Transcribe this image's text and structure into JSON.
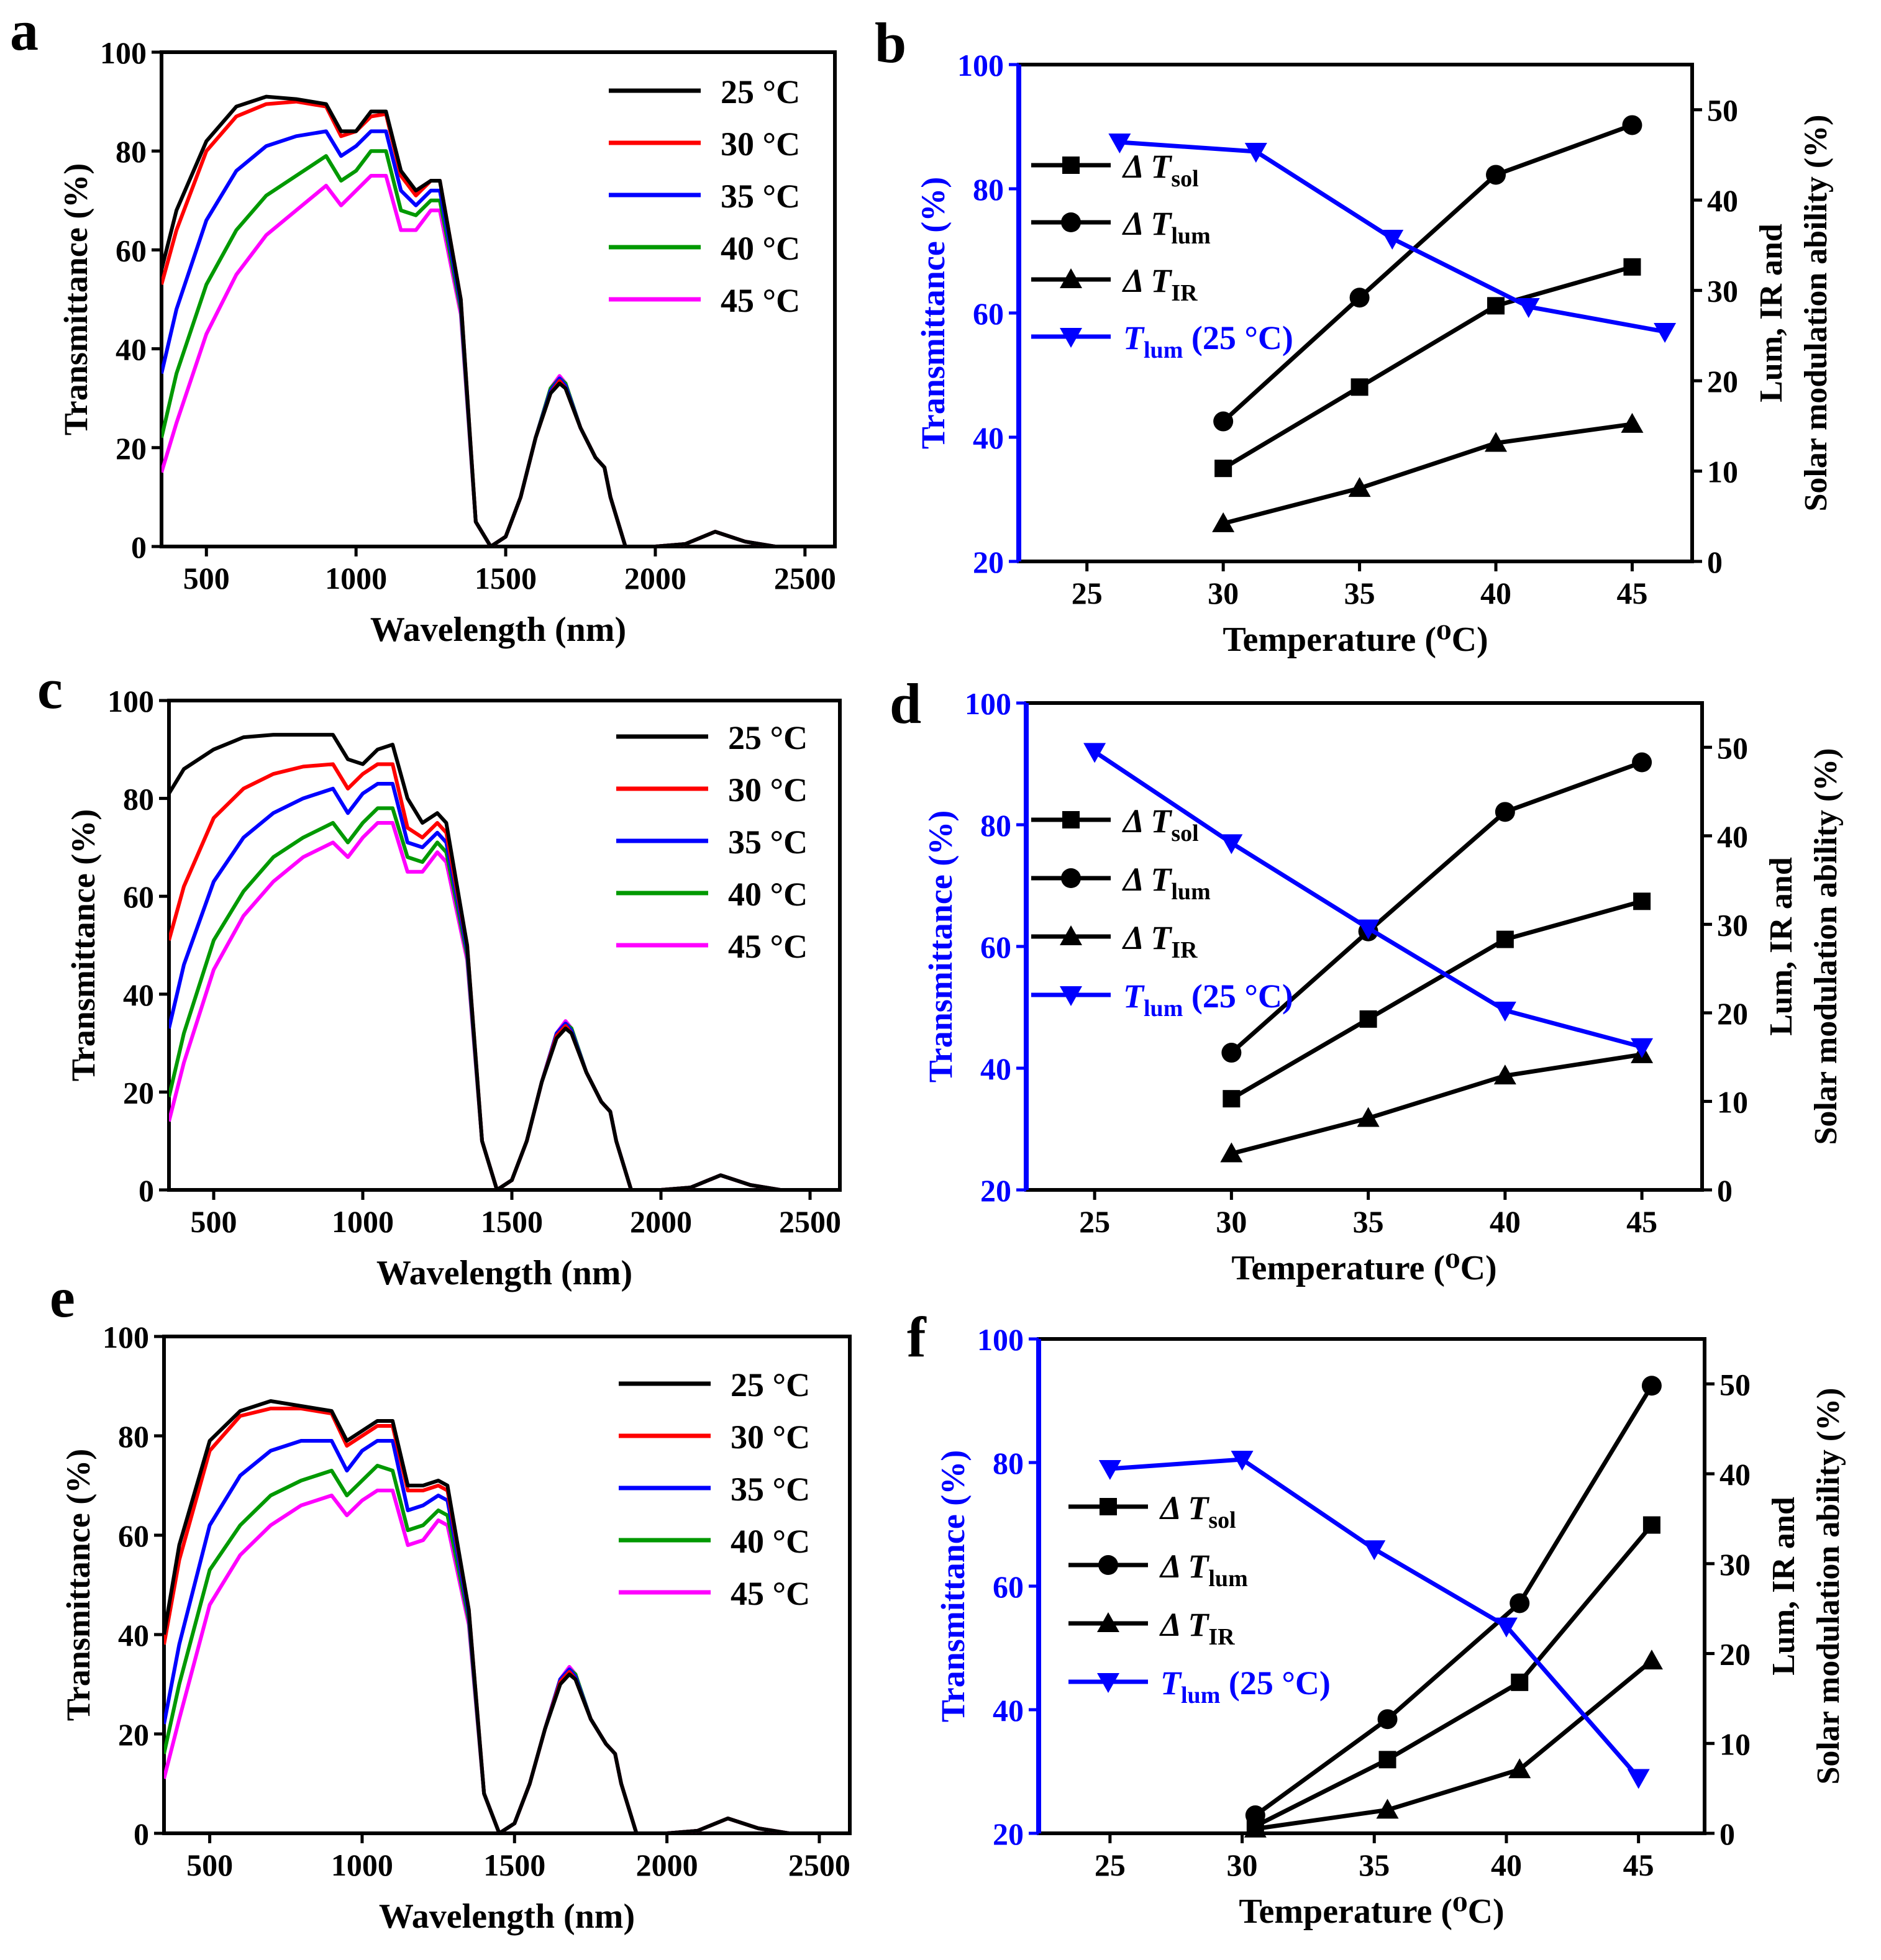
{
  "colors": {
    "25": "#000000",
    "30": "#ff0000",
    "35": "#0000ff",
    "40": "#009900",
    "45": "#ff00ff",
    "axis_blue": "#0000ff",
    "black": "#000000"
  },
  "chart_data": [
    {
      "panel": "a",
      "type": "line",
      "xlabel": "Wavelength (nm)",
      "ylabel": "Transmittance (%)",
      "xlim": [
        350,
        2600
      ],
      "ylim": [
        0,
        100
      ],
      "xticks": [
        500,
        1000,
        1500,
        2000,
        2500
      ],
      "yticks": [
        0,
        20,
        40,
        60,
        80,
        100
      ],
      "x": [
        350,
        400,
        500,
        600,
        700,
        800,
        900,
        950,
        1000,
        1050,
        1100,
        1150,
        1200,
        1250,
        1280,
        1350,
        1400,
        1450,
        1500,
        1550,
        1600,
        1650,
        1680,
        1700,
        1750,
        1800,
        1830,
        1850,
        1900,
        2000,
        2100,
        2200,
        2300,
        2400,
        2600
      ],
      "series": [
        {
          "name": "25 °C",
          "color_key": "25",
          "values": [
            56,
            68,
            82,
            89,
            91,
            90.5,
            89.5,
            84,
            84,
            88,
            88,
            76,
            72,
            74,
            74,
            50,
            5,
            0,
            2,
            10,
            22,
            31,
            33,
            32,
            24,
            18,
            16,
            10,
            0,
            0,
            0.5,
            3,
            1,
            0,
            0
          ]
        },
        {
          "name": "30 °C",
          "color_key": "30",
          "values": [
            53,
            64,
            80,
            87,
            89.5,
            90,
            89,
            83,
            84,
            87,
            87.5,
            75,
            71,
            74,
            74,
            50,
            5,
            0,
            2,
            10,
            22,
            31,
            33.5,
            32,
            24,
            18,
            16,
            10,
            0,
            0,
            0.5,
            3,
            1,
            0,
            0
          ]
        },
        {
          "name": "35 °C",
          "color_key": "35",
          "values": [
            35,
            48,
            66,
            76,
            81,
            83,
            84,
            79,
            81,
            84,
            84,
            72,
            69,
            72,
            72,
            49,
            5,
            0,
            2,
            10,
            22,
            31.5,
            34,
            32.5,
            24,
            18,
            16,
            10,
            0,
            0,
            0.5,
            3,
            1,
            0,
            0
          ]
        },
        {
          "name": "40 °C",
          "color_key": "40",
          "values": [
            22,
            35,
            53,
            64,
            71,
            75,
            79,
            74,
            76,
            80,
            80,
            68,
            67,
            70,
            70,
            48,
            5,
            0,
            2,
            10,
            22,
            32,
            34,
            33,
            24,
            18,
            16,
            10,
            0,
            0,
            0.5,
            3,
            1,
            0,
            0
          ]
        },
        {
          "name": "45 °C",
          "color_key": "45",
          "values": [
            15,
            25,
            43,
            55,
            63,
            68,
            73,
            69,
            72,
            75,
            75,
            64,
            64,
            68,
            68,
            47,
            5,
            0,
            2,
            10,
            22,
            32,
            34.5,
            33,
            24,
            18,
            16,
            10,
            0,
            0,
            0.5,
            3,
            1,
            0,
            0
          ]
        }
      ]
    },
    {
      "panel": "b",
      "type": "line",
      "xlabel": "Temperature (⁰C)",
      "ylabel_left": "Transmittance (%)",
      "ylabel_right": [
        "Lum, IR and",
        "Solar modulation ability (%)"
      ],
      "xlim": [
        22.5,
        47.2
      ],
      "ylim_left": [
        20,
        100
      ],
      "ylim_right": [
        0,
        55
      ],
      "xticks": [
        25,
        30,
        35,
        40,
        45
      ],
      "yticks_left": [
        20,
        40,
        60,
        80,
        100
      ],
      "yticks_right": [
        0,
        10,
        20,
        30,
        40,
        50
      ],
      "series": [
        {
          "name": "Δ T",
          "sub": "sol",
          "marker": "square",
          "axis": "right",
          "x": [
            30,
            35,
            40,
            45
          ],
          "values": [
            10.3,
            19.3,
            28.3,
            32.6
          ]
        },
        {
          "name": "Δ T",
          "sub": "lum",
          "marker": "circle",
          "axis": "right",
          "x": [
            30,
            35,
            40,
            45
          ],
          "values": [
            15.5,
            29.2,
            42.8,
            48.3
          ]
        },
        {
          "name": "Δ T",
          "sub": "IR",
          "marker": "triangle-up",
          "axis": "right",
          "x": [
            30,
            35,
            40,
            45
          ],
          "values": [
            4.2,
            8.1,
            13.1,
            15.2
          ]
        },
        {
          "name": "T",
          "sub": "lum",
          "suffix": " (25 °C)",
          "marker": "triangle-down",
          "axis": "left",
          "x": [
            26.2,
            31.2,
            36.2,
            41.2,
            46.2
          ],
          "values": [
            87.5,
            86,
            72,
            61,
            57
          ]
        }
      ]
    },
    {
      "panel": "c",
      "type": "line",
      "xlabel": "Wavelength (nm)",
      "ylabel": "Transmittance (%)",
      "xlim": [
        350,
        2600
      ],
      "ylim": [
        0,
        100
      ],
      "xticks": [
        500,
        1000,
        1500,
        2000,
        2500
      ],
      "yticks": [
        0,
        20,
        40,
        60,
        80,
        100
      ],
      "x": [
        350,
        400,
        500,
        600,
        700,
        800,
        900,
        950,
        1000,
        1050,
        1100,
        1150,
        1200,
        1250,
        1280,
        1350,
        1400,
        1450,
        1500,
        1550,
        1600,
        1650,
        1680,
        1700,
        1750,
        1800,
        1830,
        1850,
        1900,
        2000,
        2100,
        2200,
        2300,
        2400,
        2600
      ],
      "series": [
        {
          "name": "25 °C",
          "color_key": "25",
          "values": [
            81,
            86,
            90,
            92.5,
            93,
            93,
            93,
            88,
            87,
            90,
            91,
            80,
            75,
            77,
            75,
            50,
            10,
            0,
            2,
            10,
            22,
            31,
            33,
            32,
            24,
            18,
            16,
            10,
            0,
            0,
            0.5,
            3,
            1,
            0,
            0
          ]
        },
        {
          "name": "30 °C",
          "color_key": "30",
          "values": [
            51,
            62,
            76,
            82,
            85,
            86.5,
            87,
            82,
            85,
            87,
            87,
            74,
            72,
            75,
            73,
            50,
            10,
            0,
            2,
            10,
            22,
            31.5,
            33.5,
            32,
            24,
            18,
            16,
            10,
            0,
            0,
            0.5,
            3,
            1,
            0,
            0
          ]
        },
        {
          "name": "35 °C",
          "color_key": "35",
          "values": [
            33,
            46,
            63,
            72,
            77,
            80,
            82,
            77,
            81,
            83,
            83,
            71,
            70,
            73,
            71,
            49,
            10,
            0,
            2,
            10,
            22,
            32,
            34,
            32.5,
            24,
            18,
            16,
            10,
            0,
            0,
            0.5,
            3,
            1,
            0,
            0
          ]
        },
        {
          "name": "40 °C",
          "color_key": "40",
          "values": [
            19,
            32,
            51,
            61,
            68,
            72,
            75,
            71,
            75,
            78,
            78,
            68,
            67,
            71,
            69,
            48,
            10,
            0,
            2,
            10,
            22,
            32,
            34,
            33,
            24,
            18,
            16,
            10,
            0,
            0,
            0.5,
            3,
            1,
            0,
            0
          ]
        },
        {
          "name": "45 °C",
          "color_key": "45",
          "values": [
            14,
            26,
            45,
            56,
            63,
            68,
            71,
            68,
            72,
            75,
            75,
            65,
            65,
            69,
            67,
            47,
            10,
            0,
            2,
            10,
            22,
            32,
            34.5,
            33,
            24,
            18,
            16,
            10,
            0,
            0,
            0.5,
            3,
            1,
            0,
            0
          ]
        }
      ]
    },
    {
      "panel": "d",
      "type": "line",
      "xlabel": "Temperature (⁰C)",
      "ylabel_left": "Transmittance (%)",
      "ylabel_right": [
        "Lum, IR and",
        "Solar modulation ability (%)"
      ],
      "xlim": [
        22.5,
        47.2
      ],
      "ylim_left": [
        20,
        100
      ],
      "ylim_right": [
        0,
        55
      ],
      "xticks": [
        25,
        30,
        35,
        40,
        45
      ],
      "yticks_left": [
        20,
        40,
        60,
        80,
        100
      ],
      "yticks_right": [
        0,
        10,
        20,
        30,
        40,
        50
      ],
      "series": [
        {
          "name": "Δ T",
          "sub": "sol",
          "marker": "square",
          "axis": "right",
          "x": [
            30,
            35,
            40,
            45
          ],
          "values": [
            10.3,
            19.3,
            28.3,
            32.6
          ]
        },
        {
          "name": "Δ T",
          "sub": "lum",
          "marker": "circle",
          "axis": "right",
          "x": [
            30,
            35,
            40,
            45
          ],
          "values": [
            15.5,
            29.2,
            42.7,
            48.3
          ]
        },
        {
          "name": "Δ T",
          "sub": "IR",
          "marker": "triangle-up",
          "axis": "right",
          "x": [
            30,
            35,
            40,
            45
          ],
          "values": [
            4.1,
            8.1,
            12.9,
            15.3
          ]
        },
        {
          "name": "T",
          "sub": "lum",
          "suffix": " (25 °C)",
          "marker": "triangle-down",
          "axis": "left",
          "x": [
            25,
            30,
            35,
            40,
            45
          ],
          "values": [
            92,
            77,
            63,
            49.5,
            43.5
          ]
        }
      ]
    },
    {
      "panel": "e",
      "type": "line",
      "xlabel": "Wavelength (nm)",
      "ylabel": "Transmittance (%)",
      "xlim": [
        350,
        2600
      ],
      "ylim": [
        0,
        100
      ],
      "xticks": [
        500,
        1000,
        1500,
        2000,
        2500
      ],
      "yticks": [
        0,
        20,
        40,
        60,
        80,
        100
      ],
      "x": [
        350,
        400,
        500,
        600,
        700,
        800,
        900,
        950,
        1000,
        1050,
        1100,
        1150,
        1200,
        1250,
        1280,
        1350,
        1400,
        1450,
        1500,
        1550,
        1600,
        1650,
        1680,
        1700,
        1750,
        1800,
        1830,
        1850,
        1900,
        2000,
        2100,
        2200,
        2300,
        2400,
        2600
      ],
      "series": [
        {
          "name": "25 °C",
          "color_key": "25",
          "values": [
            40,
            58,
            79,
            85,
            87,
            86,
            85,
            79,
            81,
            83,
            83,
            70,
            70,
            71,
            70,
            45,
            8,
            0,
            2,
            10,
            21,
            30,
            32,
            31,
            23,
            18,
            16,
            10,
            0,
            0,
            0.5,
            3,
            1,
            0,
            0
          ]
        },
        {
          "name": "30 °C",
          "color_key": "30",
          "values": [
            38,
            55,
            77,
            84,
            85.5,
            85.5,
            84.5,
            78,
            80,
            82,
            82,
            69,
            69,
            70,
            69,
            45,
            8,
            0,
            2,
            10,
            21,
            30.5,
            32.5,
            31,
            23,
            18,
            16,
            10,
            0,
            0,
            0.5,
            3,
            1,
            0,
            0
          ]
        },
        {
          "name": "35 °C",
          "color_key": "35",
          "values": [
            22,
            38,
            62,
            72,
            77,
            79,
            79,
            73,
            77,
            79,
            79,
            65,
            66,
            68,
            67,
            44,
            8,
            0,
            2,
            10,
            21,
            31,
            33,
            31.5,
            23,
            18,
            16,
            10,
            0,
            0,
            0.5,
            3,
            1,
            0,
            0
          ]
        },
        {
          "name": "40 °C",
          "color_key": "40",
          "values": [
            16,
            30,
            53,
            62,
            68,
            71,
            73,
            68,
            71,
            74,
            73,
            61,
            62,
            65,
            64,
            43,
            8,
            0,
            2,
            10,
            21,
            31,
            33,
            32,
            23,
            18,
            16,
            10,
            0,
            0,
            0.5,
            3,
            1,
            0,
            0
          ]
        },
        {
          "name": "45 °C",
          "color_key": "45",
          "values": [
            11,
            23,
            46,
            56,
            62,
            66,
            68,
            64,
            67,
            69,
            69,
            58,
            59,
            63,
            62,
            42,
            8,
            0,
            2,
            10,
            21,
            31,
            33.5,
            32,
            23,
            18,
            16,
            10,
            0,
            0,
            0.5,
            3,
            1,
            0,
            0
          ]
        }
      ]
    },
    {
      "panel": "f",
      "type": "line",
      "xlabel": "Temperature (⁰C)",
      "ylabel_left": "Transmittance (%)",
      "ylabel_right": [
        "Lum, IR and",
        "Solar modulation ability (%)"
      ],
      "xlim": [
        22.3,
        47.5
      ],
      "ylim_left": [
        20,
        100
      ],
      "ylim_right": [
        0,
        55
      ],
      "xticks": [
        25,
        30,
        35,
        40,
        45
      ],
      "yticks_left": [
        20,
        40,
        60,
        80,
        100
      ],
      "yticks_right": [
        0,
        10,
        20,
        30,
        40,
        50
      ],
      "series": [
        {
          "name": "Δ T",
          "sub": "sol",
          "marker": "square",
          "axis": "right",
          "x": [
            30.5,
            35.5,
            40.5,
            45.5
          ],
          "values": [
            0.8,
            8.2,
            16.8,
            34.3
          ]
        },
        {
          "name": "Δ T",
          "sub": "lum",
          "marker": "circle",
          "axis": "right",
          "x": [
            30.5,
            35.5,
            40.5,
            45.5
          ],
          "values": [
            2,
            12.7,
            25.6,
            49.8
          ]
        },
        {
          "name": "Δ T",
          "sub": "IR",
          "marker": "triangle-up",
          "axis": "right",
          "x": [
            30.5,
            35.5,
            40.5,
            45.5
          ],
          "values": [
            0.5,
            2.6,
            7.1,
            19.2
          ]
        },
        {
          "name": "T",
          "sub": "lum",
          "suffix": " (25 °C)",
          "marker": "triangle-down",
          "axis": "left",
          "x": [
            25,
            30,
            35,
            40,
            45
          ],
          "values": [
            79,
            80.5,
            66,
            53.5,
            29
          ]
        }
      ]
    }
  ]
}
